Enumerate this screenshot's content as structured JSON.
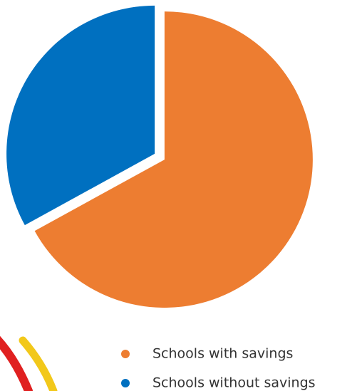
{
  "chart_data": {
    "type": "pie",
    "categories": [
      "Schools with savings",
      "Schools without savings"
    ],
    "values": [
      67,
      33
    ],
    "colors": [
      "#ed7d31",
      "#0070c0"
    ]
  }
}
